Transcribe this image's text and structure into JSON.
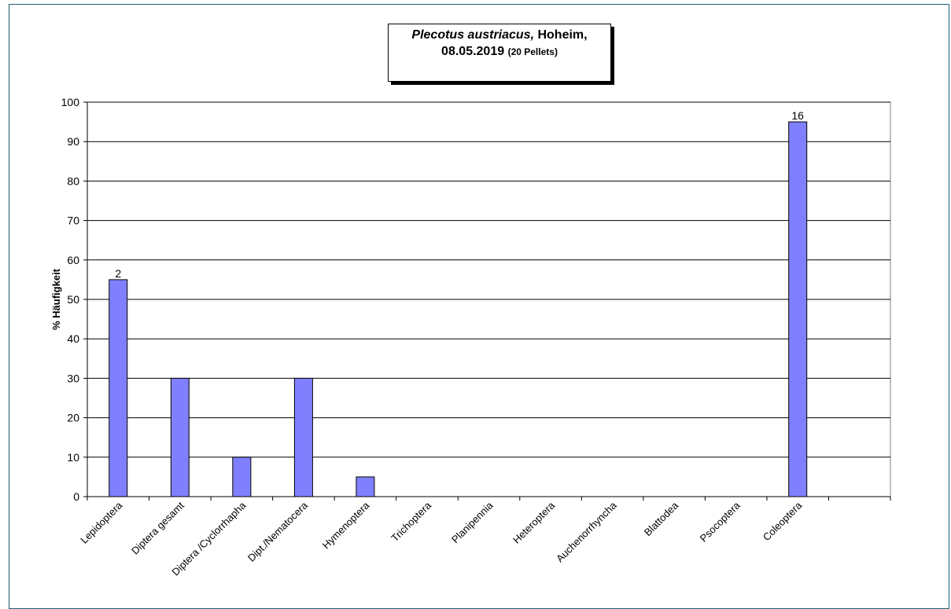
{
  "chart_data": {
    "type": "bar",
    "title": {
      "italic": "Plecotus austriacus,",
      "rest": " Hoheim,",
      "date": "08.05.2019",
      "note": "(20 Pellets)"
    },
    "xlabel": "",
    "ylabel": "% Häufigkeit",
    "ylim": [
      0,
      100
    ],
    "yticks": [
      0,
      10,
      20,
      30,
      40,
      50,
      60,
      70,
      80,
      90,
      100
    ],
    "categories": [
      "Lepidoptera",
      "Diptera gesamt",
      "Diptera /Cyclorrhapha",
      "Dipt./Nematocera",
      "Hymenoptera",
      "Trichoptera",
      "Planipennia",
      "Heteroptera",
      "Auchenorrhyncha",
      "Blattodea",
      "Psocoptera",
      "Coleoptera"
    ],
    "values": [
      55,
      30,
      10,
      30,
      5,
      0,
      0,
      0,
      0,
      0,
      0,
      95
    ],
    "data_labels": [
      "2",
      "",
      "",
      "",
      "",
      "",
      "",
      "",
      "",
      "",
      "",
      "16"
    ],
    "bar_color": "#8080ff",
    "grid": true,
    "legend": "none"
  }
}
